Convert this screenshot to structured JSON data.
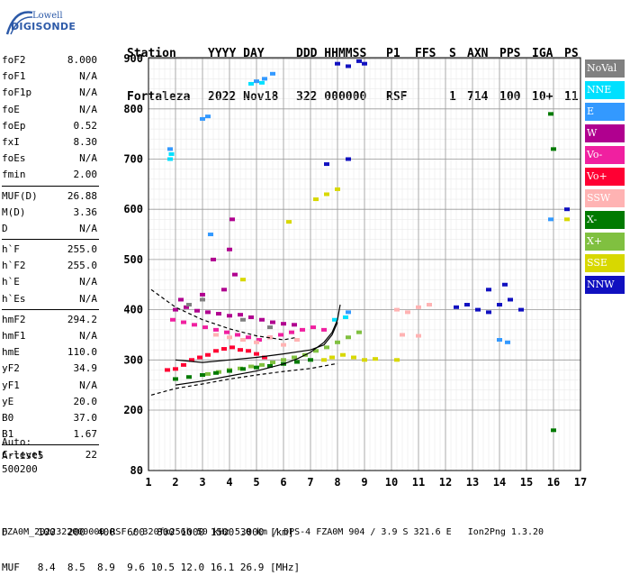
{
  "logo": {
    "line1": "Lowell",
    "line2": "DIGISONDE"
  },
  "header": {
    "labels": [
      "Station",
      "YYYY DAY",
      "DDD HHMMSS",
      "P1",
      "FFS",
      "S",
      "AXN",
      "PPS",
      "IGA",
      "PS"
    ],
    "values": [
      "Fortaleza",
      "2022 Nov18",
      "322 000000",
      "RSF",
      "",
      "1",
      "714",
      "100",
      "10+",
      "11"
    ]
  },
  "params": [
    [
      {
        "k": "foF2",
        "v": "8.000"
      },
      {
        "k": "foF1",
        "v": "N/A"
      },
      {
        "k": "foF1p",
        "v": "N/A"
      },
      {
        "k": "foE",
        "v": "N/A"
      },
      {
        "k": "foEp",
        "v": "0.52"
      },
      {
        "k": "fxI",
        "v": "8.30"
      },
      {
        "k": "foEs",
        "v": "N/A"
      },
      {
        "k": "fmin",
        "v": "2.00"
      }
    ],
    [
      {
        "k": "MUF(D)",
        "v": "26.88"
      },
      {
        "k": "M(D)",
        "v": "3.36"
      },
      {
        "k": "D",
        "v": "N/A"
      }
    ],
    [
      {
        "k": "h`F",
        "v": "255.0"
      },
      {
        "k": "h`F2",
        "v": "255.0"
      },
      {
        "k": "h`E",
        "v": "N/A"
      },
      {
        "k": "h`Es",
        "v": "N/A"
      }
    ],
    [
      {
        "k": "hmF2",
        "v": "294.2"
      },
      {
        "k": "hmF1",
        "v": "N/A"
      },
      {
        "k": "hmE",
        "v": "110.0"
      },
      {
        "k": "yF2",
        "v": "34.9"
      },
      {
        "k": "yF1",
        "v": "N/A"
      },
      {
        "k": "yE",
        "v": "20.0"
      },
      {
        "k": "B0",
        "v": "37.0"
      },
      {
        "k": "B1",
        "v": "1.67"
      }
    ],
    [
      {
        "k": "C-level",
        "v": "22"
      }
    ]
  ],
  "auto": {
    "line1": "Auto:",
    "line2": "Artist5",
    "line3": "500200"
  },
  "legend": [
    {
      "label": "NoVal",
      "color": "#808080"
    },
    {
      "label": "NNE",
      "color": "#00e0ff"
    },
    {
      "label": "E",
      "color": "#3399ff"
    },
    {
      "label": "W",
      "color": "#b0008f"
    },
    {
      "label": "Vo-",
      "color": "#f020a0"
    },
    {
      "label": "Vo+",
      "color": "#ff0033"
    },
    {
      "label": "SSW",
      "color": "#ffb3b3"
    },
    {
      "label": "X-",
      "color": "#007a00"
    },
    {
      "label": "X+",
      "color": "#80c040"
    },
    {
      "label": "SSE",
      "color": "#d8d800"
    },
    {
      "label": "NNW",
      "color": "#1010c0"
    }
  ],
  "footer": {
    "line1": "D     100  200  400  600  800 1000 1500 3000 [km]",
    "line2": "MUF   8.4  8.5  8.9  9.6 10.5 12.0 16.1 26.9 [MHz]",
    "file": "FZA0M_2022322000000.RSF / 320fx256h 50 kHz 5.0 km / DPS-4 FZA0M 904 / 3.9 S 321.6 E   Ion2Png 1.3.20"
  },
  "chart_data": {
    "type": "scatter",
    "xlim": [
      1,
      17
    ],
    "xticks": [
      1,
      2,
      3,
      4,
      5,
      6,
      7,
      8,
      9,
      10,
      11,
      12,
      13,
      14,
      15,
      16,
      17
    ],
    "yticks": [
      80,
      200,
      300,
      400,
      500,
      600,
      700,
      800,
      900
    ],
    "ylim": [
      80,
      900
    ],
    "grid": true,
    "legend_position": "right",
    "series": [
      {
        "color": "#b0008f",
        "points": [
          [
            2.0,
            400
          ],
          [
            2.4,
            405
          ],
          [
            2.8,
            398
          ],
          [
            3.2,
            395
          ],
          [
            3.6,
            392
          ],
          [
            4.0,
            388
          ],
          [
            4.4,
            390
          ],
          [
            4.8,
            385
          ],
          [
            5.2,
            380
          ],
          [
            5.6,
            375
          ],
          [
            6.0,
            372
          ],
          [
            6.4,
            370
          ],
          [
            2.2,
            420
          ],
          [
            3.0,
            430
          ],
          [
            3.8,
            440
          ],
          [
            4.2,
            470
          ],
          [
            3.4,
            500
          ],
          [
            4.0,
            520
          ],
          [
            4.1,
            580
          ]
        ]
      },
      {
        "color": "#f020a0",
        "points": [
          [
            1.9,
            380
          ],
          [
            2.3,
            375
          ],
          [
            2.7,
            370
          ],
          [
            3.1,
            365
          ],
          [
            3.5,
            360
          ],
          [
            3.9,
            355
          ],
          [
            4.3,
            350
          ],
          [
            4.7,
            345
          ],
          [
            5.1,
            340
          ],
          [
            5.5,
            345
          ],
          [
            5.9,
            350
          ],
          [
            6.3,
            355
          ],
          [
            6.7,
            360
          ],
          [
            7.1,
            365
          ],
          [
            7.5,
            360
          ]
        ]
      },
      {
        "color": "#ffb3b3",
        "points": [
          [
            3.5,
            350
          ],
          [
            4.0,
            345
          ],
          [
            4.5,
            340
          ],
          [
            5.0,
            335
          ],
          [
            5.5,
            345
          ],
          [
            6.0,
            330
          ],
          [
            6.5,
            340
          ],
          [
            10.2,
            400
          ],
          [
            10.6,
            395
          ],
          [
            11.0,
            405
          ],
          [
            11.4,
            410
          ],
          [
            10.4,
            350
          ],
          [
            11.0,
            348
          ]
        ]
      },
      {
        "color": "#ff0033",
        "points": [
          [
            1.7,
            280
          ],
          [
            2.0,
            282
          ],
          [
            2.3,
            290
          ],
          [
            2.6,
            300
          ],
          [
            2.9,
            305
          ],
          [
            3.2,
            310
          ],
          [
            3.5,
            318
          ],
          [
            3.8,
            322
          ],
          [
            4.1,
            325
          ],
          [
            4.4,
            320
          ],
          [
            4.7,
            318
          ],
          [
            5.0,
            312
          ],
          [
            5.3,
            305
          ]
        ]
      },
      {
        "color": "#80c040",
        "points": [
          [
            3.2,
            272
          ],
          [
            3.6,
            276
          ],
          [
            4.0,
            280
          ],
          [
            4.4,
            283
          ],
          [
            4.8,
            287
          ],
          [
            5.2,
            290
          ],
          [
            5.6,
            295
          ],
          [
            6.0,
            300
          ],
          [
            6.4,
            305
          ],
          [
            6.8,
            310
          ],
          [
            7.2,
            318
          ],
          [
            7.6,
            325
          ],
          [
            8.0,
            335
          ],
          [
            8.4,
            345
          ],
          [
            8.8,
            355
          ]
        ]
      },
      {
        "color": "#007a00",
        "points": [
          [
            2.0,
            262
          ],
          [
            2.5,
            266
          ],
          [
            3.0,
            270
          ],
          [
            3.5,
            274
          ],
          [
            4.0,
            278
          ],
          [
            4.5,
            282
          ],
          [
            5.0,
            285
          ],
          [
            5.5,
            288
          ],
          [
            6.0,
            292
          ],
          [
            6.5,
            296
          ],
          [
            7.0,
            300
          ],
          [
            15.9,
            790
          ],
          [
            16.0,
            720
          ],
          [
            16.0,
            160
          ]
        ]
      },
      {
        "color": "#d8d800",
        "points": [
          [
            7.5,
            300
          ],
          [
            7.8,
            305
          ],
          [
            8.2,
            310
          ],
          [
            8.6,
            305
          ],
          [
            9.0,
            300
          ],
          [
            9.4,
            302
          ],
          [
            7.2,
            620
          ],
          [
            7.6,
            630
          ],
          [
            8.0,
            640
          ],
          [
            6.2,
            575
          ],
          [
            4.5,
            460
          ],
          [
            10.2,
            300
          ],
          [
            16.5,
            580
          ]
        ]
      },
      {
        "color": "#3399ff",
        "points": [
          [
            1.8,
            720
          ],
          [
            3.0,
            780
          ],
          [
            3.2,
            785
          ],
          [
            5.0,
            855
          ],
          [
            5.3,
            860
          ],
          [
            5.6,
            870
          ],
          [
            3.3,
            550
          ],
          [
            8.4,
            395
          ],
          [
            14.0,
            340
          ],
          [
            14.3,
            335
          ],
          [
            15.9,
            580
          ]
        ]
      },
      {
        "color": "#00e0ff",
        "points": [
          [
            1.8,
            700
          ],
          [
            1.85,
            710
          ],
          [
            4.8,
            850
          ],
          [
            5.2,
            852
          ],
          [
            7.9,
            380
          ],
          [
            8.3,
            385
          ]
        ]
      },
      {
        "color": "#1010c0",
        "points": [
          [
            8.0,
            890
          ],
          [
            8.4,
            885
          ],
          [
            8.8,
            895
          ],
          [
            9.0,
            890
          ],
          [
            7.6,
            690
          ],
          [
            8.4,
            700
          ],
          [
            12.4,
            405
          ],
          [
            12.8,
            410
          ],
          [
            13.2,
            400
          ],
          [
            13.6,
            395
          ],
          [
            14.0,
            410
          ],
          [
            14.4,
            420
          ],
          [
            14.8,
            400
          ],
          [
            13.6,
            440
          ],
          [
            14.2,
            450
          ],
          [
            16.5,
            600
          ]
        ]
      },
      {
        "color": "#808080",
        "points": [
          [
            2.5,
            410
          ],
          [
            3.0,
            420
          ],
          [
            4.5,
            380
          ],
          [
            5.5,
            365
          ]
        ]
      }
    ],
    "lines": [
      {
        "color": "#000000",
        "style": "dashed",
        "points": [
          [
            1.1,
            230
          ],
          [
            2.0,
            243
          ],
          [
            3.0,
            252
          ],
          [
            4.0,
            262
          ],
          [
            5.0,
            270
          ],
          [
            6.0,
            277
          ],
          [
            7.0,
            283
          ],
          [
            8.0,
            293
          ]
        ]
      },
      {
        "color": "#000000",
        "style": "solid",
        "points": [
          [
            2.0,
            250
          ],
          [
            3.0,
            258
          ],
          [
            4.0,
            268
          ],
          [
            5.0,
            278
          ],
          [
            6.0,
            292
          ],
          [
            6.5,
            302
          ],
          [
            7.0,
            315
          ],
          [
            7.5,
            335
          ],
          [
            7.8,
            355
          ],
          [
            8.0,
            380
          ],
          [
            8.1,
            410
          ]
        ]
      },
      {
        "color": "#000000",
        "style": "dashed",
        "points": [
          [
            1.1,
            440
          ],
          [
            2.0,
            405
          ],
          [
            3.0,
            380
          ],
          [
            4.0,
            362
          ],
          [
            5.0,
            348
          ],
          [
            6.0,
            340
          ],
          [
            6.5,
            345
          ]
        ]
      },
      {
        "color": "#000000",
        "style": "solid",
        "points": [
          [
            2.0,
            300
          ],
          [
            3.0,
            295
          ],
          [
            4.0,
            300
          ],
          [
            5.0,
            305
          ],
          [
            6.0,
            312
          ],
          [
            7.0,
            320
          ],
          [
            7.5,
            330
          ],
          [
            7.8,
            350
          ],
          [
            8.0,
            375
          ]
        ]
      }
    ]
  }
}
